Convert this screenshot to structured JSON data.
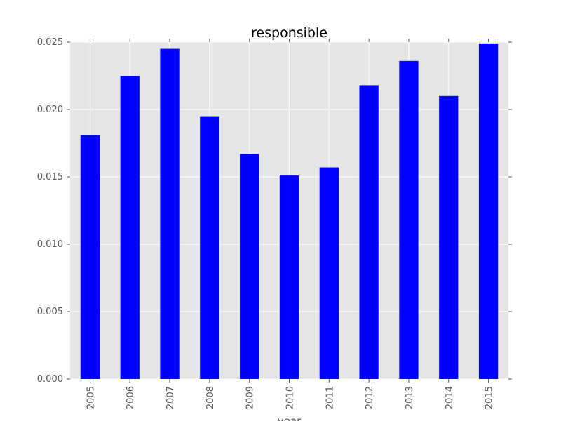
{
  "chart_data": {
    "type": "bar",
    "title": "responsible",
    "xlabel": "year",
    "ylabel": "",
    "categories": [
      "2005",
      "2006",
      "2007",
      "2008",
      "2009",
      "2010",
      "2011",
      "2012",
      "2013",
      "2014",
      "2015"
    ],
    "values": [
      0.0181,
      0.0225,
      0.0245,
      0.0195,
      0.0167,
      0.0151,
      0.0157,
      0.0218,
      0.0236,
      0.021,
      0.0249
    ],
    "ylim": [
      0,
      0.025
    ],
    "yticks": [
      "0.000",
      "0.005",
      "0.010",
      "0.015",
      "0.020",
      "0.025"
    ],
    "ytick_values": [
      0,
      0.005,
      0.01,
      0.015,
      0.02,
      0.025
    ],
    "grid": true,
    "bar_color": "#0000ff",
    "plot_background": "#e5e5e5",
    "grid_color": "#ffffff"
  }
}
